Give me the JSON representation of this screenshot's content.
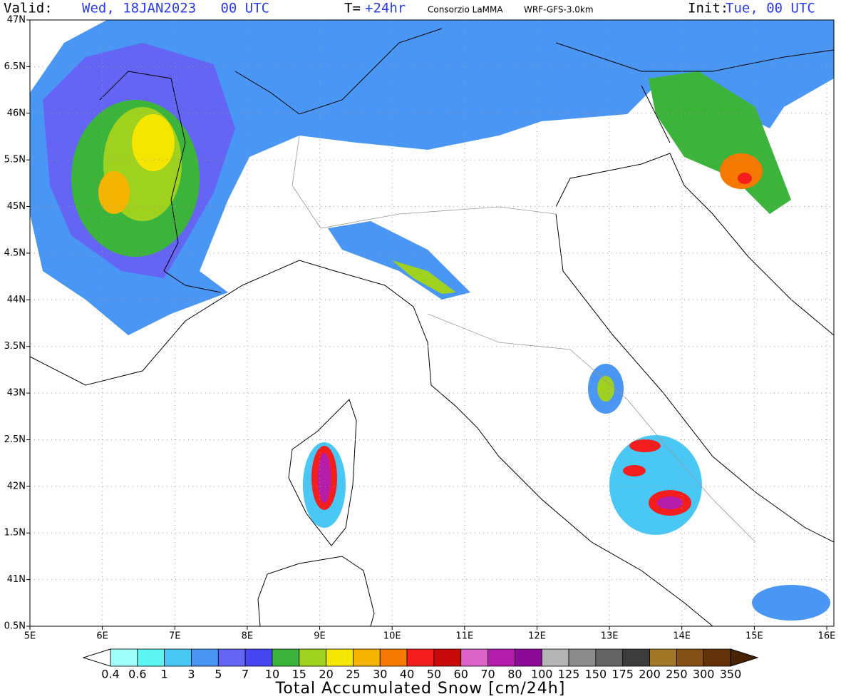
{
  "header": {
    "valid_label": "Valid:",
    "valid_value": "Wed, 18JAN2023   00 UTC",
    "t_label": "T=",
    "t_value": "+24hr",
    "source": "Consorzio LaMMA",
    "model": "WRF-GFS-3.0km",
    "init_label": "Init:",
    "init_value": "Tue, 00 UTC"
  },
  "map": {
    "lat_labels": [
      "47N",
      "6.5N",
      "46N",
      "5.5N",
      "45N",
      "4.5N",
      "44N",
      "3.5N",
      "43N",
      "2.5N",
      "42N",
      "1.5N",
      "41N",
      "0.5N"
    ],
    "lon_labels": [
      "5E",
      "6E",
      "7E",
      "8E",
      "9E",
      "10E",
      "11E",
      "12E",
      "13E",
      "14E",
      "15E",
      "16E"
    ]
  },
  "colorbar": {
    "title": "Total Accumulated Snow [cm/24h]",
    "labels": [
      0.4,
      0.6,
      1,
      3,
      5,
      7,
      10,
      15,
      20,
      25,
      30,
      40,
      50,
      60,
      70,
      80,
      100,
      125,
      150,
      175,
      200,
      250,
      300,
      350
    ],
    "under_color": "#ffffff",
    "colors": [
      "#a0fff8",
      "#5cf5f0",
      "#4ac8f5",
      "#4a96f5",
      "#6464f5",
      "#4646f0",
      "#3cb43c",
      "#9ed21e",
      "#f5e600",
      "#f5b400",
      "#f57800",
      "#f51e1e",
      "#c80a0a",
      "#dc64c8",
      "#b41eaa",
      "#8c0a96",
      "#b4b4b4",
      "#8c8c8c",
      "#646464",
      "#3c3c3c",
      "#a07828",
      "#825014",
      "#64320a"
    ],
    "over_color": "#462305"
  }
}
